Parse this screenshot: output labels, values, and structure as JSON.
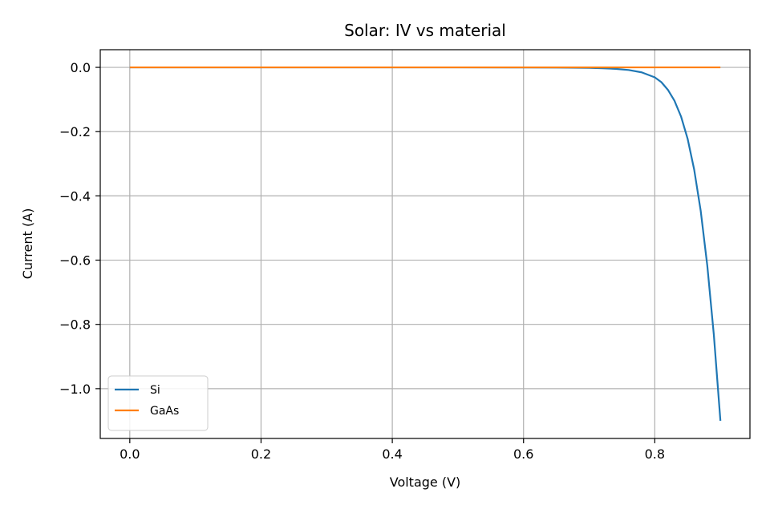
{
  "chart_data": {
    "type": "line",
    "title": "Solar: IV vs material",
    "xlabel": "Voltage (V)",
    "ylabel": "Current (A)",
    "xlim": [
      -0.045,
      0.945
    ],
    "ylim": [
      -1.155,
      0.055
    ],
    "xticks": [
      0.0,
      0.2,
      0.4,
      0.6,
      0.8
    ],
    "xtick_labels": [
      "0.0",
      "0.2",
      "0.4",
      "0.6",
      "0.8"
    ],
    "yticks": [
      0.0,
      -0.2,
      -0.4,
      -0.6,
      -0.8,
      -1.0
    ],
    "ytick_labels": [
      "0.0",
      "−0.2",
      "−0.4",
      "−0.6",
      "−0.8",
      "−1.0"
    ],
    "grid": true,
    "legend_position": "lower-left",
    "series": [
      {
        "name": "Si",
        "color": "#1f77b4",
        "x": [
          0.0,
          0.1,
          0.2,
          0.3,
          0.4,
          0.5,
          0.6,
          0.65,
          0.7,
          0.72,
          0.74,
          0.76,
          0.78,
          0.8,
          0.81,
          0.82,
          0.83,
          0.84,
          0.85,
          0.86,
          0.87,
          0.88,
          0.89,
          0.9
        ],
        "y": [
          0.0,
          0.0,
          0.0,
          0.0,
          0.0,
          0.0,
          -0.0002,
          -0.0006,
          -0.0016,
          -0.0026,
          -0.0045,
          -0.0081,
          -0.0155,
          -0.031,
          -0.046,
          -0.07,
          -0.104,
          -0.153,
          -0.222,
          -0.318,
          -0.447,
          -0.617,
          -0.833,
          -1.1
        ]
      },
      {
        "name": "GaAs",
        "color": "#ff7f0e",
        "x": [
          0.0,
          0.9
        ],
        "y": [
          0.0,
          0.0
        ]
      }
    ]
  }
}
